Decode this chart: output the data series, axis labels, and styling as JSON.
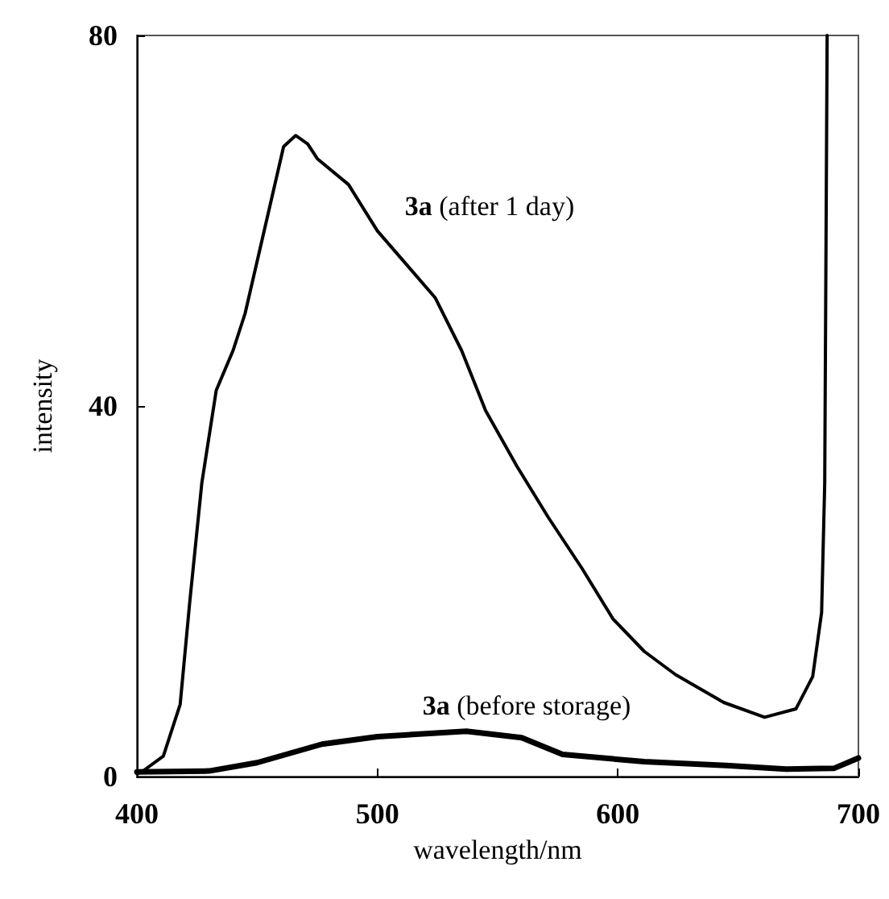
{
  "chart_data": {
    "type": "line",
    "xlabel": "wavelength/nm",
    "ylabel": "intensity",
    "xlim": [
      400,
      700
    ],
    "xticks": [
      400,
      500,
      600,
      700
    ],
    "ylim": [
      0,
      80
    ],
    "yticks": [
      0,
      40,
      80
    ],
    "grid": false,
    "marker": "none",
    "line_style": "solid",
    "series": [
      {
        "name": "3a (after 1 day)",
        "color": "#000000",
        "x": [
          400,
          402,
          411,
          418,
          422,
          427,
          433,
          440,
          445,
          453,
          461,
          466,
          471,
          475,
          488,
          500,
          515,
          524,
          535,
          545,
          558,
          571,
          585,
          598,
          611,
          624,
          644,
          661,
          674,
          681,
          684.7,
          686,
          687
        ],
        "values": [
          0.3,
          0.5,
          2.2,
          7.8,
          18.9,
          31.7,
          41.7,
          46,
          50,
          59,
          68,
          69.2,
          68.3,
          66.7,
          63.9,
          58.9,
          54.4,
          51.7,
          46,
          39.5,
          33.5,
          28,
          22.5,
          17,
          13.5,
          11,
          8,
          6.4,
          7.3,
          10.8,
          17.7,
          31.7,
          80
        ]
      },
      {
        "name": "3a (before storage)",
        "color": "#000000",
        "x": [
          400,
          430,
          450,
          477,
          500,
          537,
          560,
          577,
          611,
          645,
          670,
          690,
          700
        ],
        "values": [
          0.5,
          0.6,
          1.5,
          3.5,
          4.3,
          4.9,
          4.2,
          2.4,
          1.6,
          1.2,
          0.8,
          0.9,
          2
        ]
      }
    ]
  }
}
